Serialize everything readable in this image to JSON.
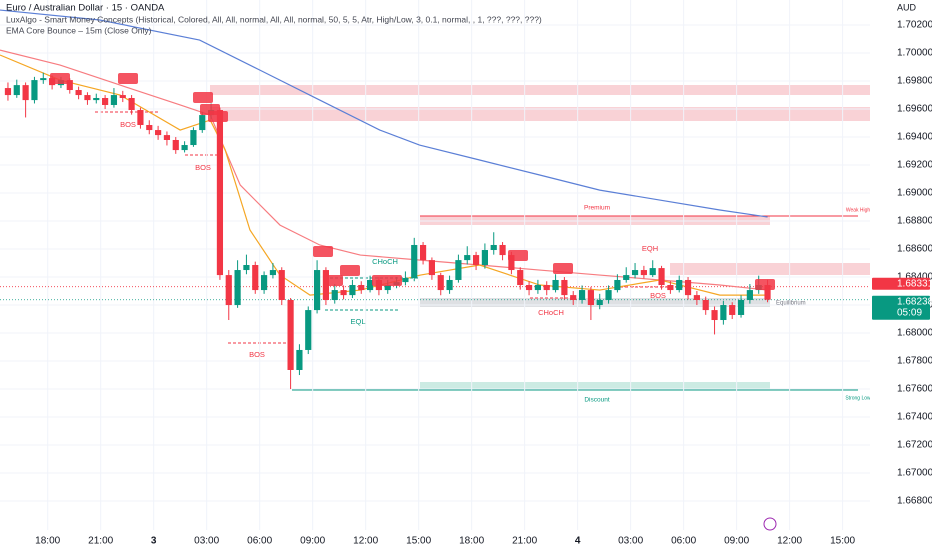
{
  "chart_data": {
    "type": "candlestick",
    "title": "Euro / Australian Dollar · 15 · OANDA",
    "indicators": [
      "LuxAlgo - Smart Money Concepts (Historical, Colored, All, All, normal, All, All, normal, 50, 5, 5, Atr, High/Low, 3, 0.1, normal, , 1, ???, ???, ???)",
      "EMA Core Bounce – 15m (Close Only)"
    ],
    "currency": "AUD",
    "up_color": "#089981",
    "down_color": "#f23645",
    "open": [
      1.6975,
      1.697,
      1.69771,
      1.69664,
      1.69807,
      1.69821,
      1.69771,
      1.69807,
      1.69736,
      1.697,
      1.69664,
      1.69679,
      1.69629,
      1.697,
      1.69679,
      1.69593,
      1.69486,
      1.6945,
      1.69414,
      1.69379,
      1.69307,
      1.69343,
      1.6945,
      1.69557,
      1.69593,
      1.68414,
      1.682,
      1.6845,
      1.68486,
      1.68307,
      1.68414,
      1.6845,
      1.68236,
      1.67736,
      1.67879,
      1.68164,
      1.6845,
      1.68236,
      1.68307,
      1.68271,
      1.68343,
      1.68307,
      1.68379,
      1.68307,
      1.68343,
      1.68364,
      1.68393,
      1.68629,
      1.68521,
      1.68414,
      1.68307,
      1.68379,
      1.68521,
      1.68557,
      1.68486,
      1.68593,
      1.68629,
      1.68557,
      1.6845,
      1.68343,
      1.68307,
      1.68343,
      1.68307,
      1.68379,
      1.68271,
      1.68236,
      1.68307,
      1.682,
      1.68236,
      1.68307,
      1.68379,
      1.68414,
      1.6845,
      1.68414,
      1.68464,
      1.68343,
      1.68307,
      1.68379,
      1.68271,
      1.68236,
      1.68164,
      1.68093,
      1.682,
      1.68129,
      1.68236,
      1.68307,
      1.68343
    ],
    "high": [
      1.6979,
      1.6981,
      1.6979,
      1.6983,
      1.6986,
      1.6984,
      1.6983,
      1.6982,
      1.6976,
      1.6972,
      1.6971,
      1.697,
      1.6975,
      1.6973,
      1.697,
      1.6961,
      1.6952,
      1.6948,
      1.6944,
      1.694,
      1.6937,
      1.6947,
      1.6958,
      1.6964,
      1.6961,
      1.6845,
      1.6852,
      1.6856,
      1.6851,
      1.6844,
      1.685,
      1.6847,
      1.6825,
      1.6792,
      1.6819,
      1.6852,
      1.6847,
      1.6835,
      1.6834,
      1.6838,
      1.6837,
      1.6841,
      1.684,
      1.6838,
      1.684,
      1.6844,
      1.6868,
      1.6865,
      1.6854,
      1.6843,
      1.6841,
      1.6856,
      1.6862,
      1.6858,
      1.6864,
      1.6872,
      1.6865,
      1.6858,
      1.6847,
      1.6837,
      1.6838,
      1.6837,
      1.6842,
      1.684,
      1.683,
      1.6834,
      1.6833,
      1.6828,
      1.6834,
      1.6842,
      1.6847,
      1.685,
      1.6848,
      1.6852,
      1.6848,
      1.6837,
      1.6841,
      1.684,
      1.683,
      1.6826,
      1.6819,
      1.6823,
      1.6822,
      1.6827,
      1.6835,
      1.6841,
      1.6838
    ],
    "low": [
      1.6966,
      1.6968,
      1.6954,
      1.6964,
      1.6978,
      1.6974,
      1.6975,
      1.6971,
      1.6967,
      1.6963,
      1.6964,
      1.696,
      1.6961,
      1.6965,
      1.6956,
      1.6946,
      1.6942,
      1.6938,
      1.6934,
      1.6928,
      1.6929,
      1.6933,
      1.6943,
      1.6953,
      1.6838,
      1.68093,
      1.6818,
      1.6842,
      1.6828,
      1.6828,
      1.6839,
      1.682,
      1.676,
      1.677,
      1.6785,
      1.6814,
      1.682,
      1.6821,
      1.6824,
      1.6825,
      1.6828,
      1.6829,
      1.6827,
      1.6828,
      1.6832,
      1.6834,
      1.6837,
      1.6849,
      1.6838,
      1.6827,
      1.6828,
      1.6836,
      1.6849,
      1.6845,
      1.6846,
      1.6856,
      1.6852,
      1.6842,
      1.6831,
      1.6827,
      1.6828,
      1.6827,
      1.6829,
      1.6824,
      1.682,
      1.6821,
      1.68093,
      1.6817,
      1.6821,
      1.6829,
      1.6836,
      1.6839,
      1.6839,
      1.684,
      1.6831,
      1.6828,
      1.6829,
      1.6824,
      1.682,
      1.6813,
      1.6799,
      1.6806,
      1.681,
      1.6811,
      1.6821,
      1.6828,
      1.6822
    ],
    "close": [
      1.697,
      1.69771,
      1.69664,
      1.69807,
      1.69821,
      1.69771,
      1.69807,
      1.69736,
      1.697,
      1.69664,
      1.69679,
      1.69629,
      1.697,
      1.69679,
      1.69593,
      1.69486,
      1.6945,
      1.69414,
      1.69379,
      1.69307,
      1.69343,
      1.6945,
      1.69557,
      1.69593,
      1.68414,
      1.682,
      1.6845,
      1.68486,
      1.68307,
      1.68414,
      1.6845,
      1.68236,
      1.67736,
      1.67879,
      1.68164,
      1.6845,
      1.68236,
      1.68307,
      1.68271,
      1.68343,
      1.68307,
      1.68379,
      1.68307,
      1.68343,
      1.68364,
      1.68393,
      1.68629,
      1.68521,
      1.68414,
      1.68307,
      1.68379,
      1.68521,
      1.68557,
      1.68486,
      1.68593,
      1.68629,
      1.68557,
      1.6845,
      1.68343,
      1.68307,
      1.68343,
      1.68307,
      1.68379,
      1.68271,
      1.68236,
      1.68307,
      1.682,
      1.68236,
      1.68307,
      1.68379,
      1.68414,
      1.6845,
      1.68414,
      1.68464,
      1.68343,
      1.68307,
      1.68379,
      1.68271,
      1.68236,
      1.68164,
      1.68093,
      1.682,
      1.68129,
      1.68236,
      1.68307,
      1.68343,
      1.68238
    ],
    "lines": [
      {
        "color": "#5b7fd6",
        "x": [
          -0.9,
          10.4,
          21.7,
          28.5,
          35.3,
          42.1,
          46.6,
          53.4,
          60.2,
          67,
          73.8,
          80.6,
          86
        ],
        "values": [
          1.70307,
          1.70236,
          1.70093,
          1.69879,
          1.69664,
          1.6945,
          1.69343,
          1.69236,
          1.69129,
          1.69021,
          1.6895,
          1.68879,
          1.68829
        ]
      },
      {
        "color": "#f77c80",
        "x": [
          -0.9,
          5.9,
          12.7,
          19.5,
          22.9,
          26.3,
          30.8,
          35.3,
          39.9,
          46.7,
          53.4,
          60.2,
          67,
          73.8,
          80.6,
          86
        ],
        "values": [
          1.70021,
          1.69914,
          1.69771,
          1.69629,
          1.69557,
          1.69057,
          1.68771,
          1.68629,
          1.68557,
          1.68521,
          1.68486,
          1.6845,
          1.68414,
          1.68379,
          1.68343,
          1.68307
        ]
      },
      {
        "color": "#f5a623",
        "x": [
          -0.9,
          5.9,
          12.7,
          19.5,
          22.9,
          24.6,
          27.4,
          30.8,
          34.2,
          39.9,
          46.7,
          53.4,
          60.2,
          67,
          73.8,
          80.6,
          86
        ],
        "values": [
          1.69986,
          1.69807,
          1.697,
          1.6945,
          1.69521,
          1.69307,
          1.68736,
          1.68414,
          1.68271,
          1.68307,
          1.68414,
          1.68486,
          1.68343,
          1.68307,
          1.68379,
          1.68271,
          1.68271
        ]
      }
    ],
    "xlim": [
      -0.9,
      97.6
    ],
    "xticks": [
      {
        "value": 4.5,
        "label": "18:00"
      },
      {
        "value": 10.5,
        "label": "21:00"
      },
      {
        "value": 16.5,
        "label": "3"
      },
      {
        "value": 22.5,
        "label": "03:00"
      },
      {
        "value": 28.5,
        "label": "06:00"
      },
      {
        "value": 34.5,
        "label": "09:00"
      },
      {
        "value": 40.5,
        "label": "12:00"
      },
      {
        "value": 46.5,
        "label": "15:00"
      },
      {
        "value": 52.5,
        "label": "18:00"
      },
      {
        "value": 58.5,
        "label": "21:00"
      },
      {
        "value": 64.5,
        "label": "4"
      },
      {
        "value": 70.5,
        "label": "03:00"
      },
      {
        "value": 76.5,
        "label": "06:00"
      },
      {
        "value": 82.5,
        "label": "09:00"
      },
      {
        "value": 88.5,
        "label": "12:00"
      },
      {
        "value": 94.5,
        "label": "15:00"
      }
    ],
    "ylim": [
      1.66593,
      1.70379
    ],
    "yticks": [
      {
        "value": 1.702,
        "label": "1.70200"
      },
      {
        "value": 1.7,
        "label": "1.70000"
      },
      {
        "value": 1.698,
        "label": "1.69800"
      },
      {
        "value": 1.696,
        "label": "1.69600"
      },
      {
        "value": 1.694,
        "label": "1.69400"
      },
      {
        "value": 1.692,
        "label": "1.69200"
      },
      {
        "value": 1.69,
        "label": "1.69000"
      },
      {
        "value": 1.688,
        "label": "1.68800"
      },
      {
        "value": 1.686,
        "label": "1.68600"
      },
      {
        "value": 1.684,
        "label": "1.68400"
      },
      {
        "value": 1.682,
        "label": "1.68200"
      },
      {
        "value": 1.68,
        "label": "1.68000"
      },
      {
        "value": 1.678,
        "label": "1.67800"
      },
      {
        "value": 1.676,
        "label": "1.67600"
      },
      {
        "value": 1.674,
        "label": "1.67400"
      },
      {
        "value": 1.672,
        "label": "1.67200"
      },
      {
        "value": 1.67,
        "label": "1.67000"
      },
      {
        "value": 1.668,
        "label": "1.66800"
      }
    ],
    "price_tags": [
      {
        "value": 1.68331,
        "label": "1.68331",
        "color": "#f23645"
      },
      {
        "value": 1.68238,
        "label": "1.68238",
        "color": "#089981",
        "countdown": "05:09"
      }
    ],
    "annotations": [
      "BOS",
      "BOS",
      "BOS",
      "BOS",
      "CHoCH",
      "CHoCH",
      "EQL",
      "EQH",
      "Premium",
      "Discount",
      "Equilibrium",
      "Weak High",
      "Strong Low"
    ]
  }
}
